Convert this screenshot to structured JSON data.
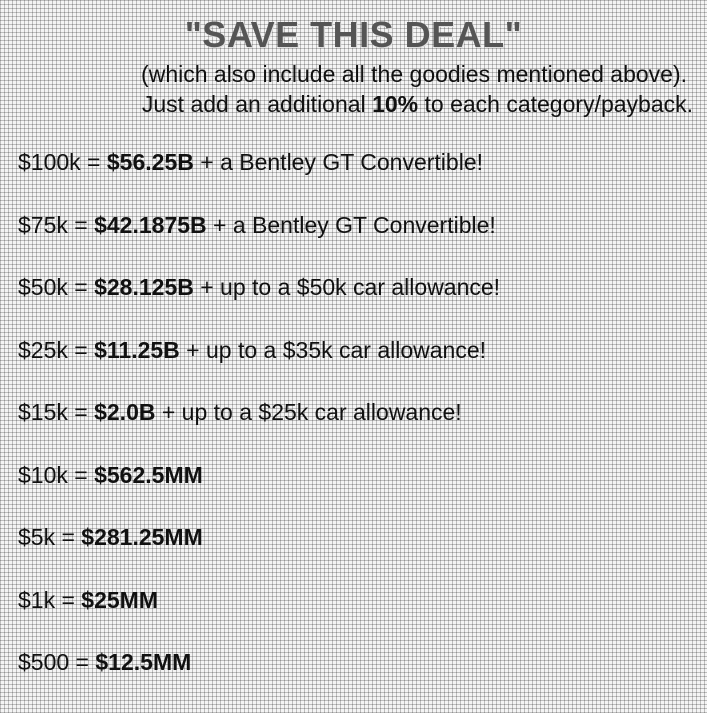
{
  "title": "\"SAVE THIS DEAL\"",
  "subtitle_line1": "(which also include all the goodies mentioned above).",
  "subtitle_line2": {
    "before": "Just add an additional ",
    "emphasis": "10%",
    "after": " to each category/payback."
  },
  "deals": [
    {
      "amount": "$100k = ",
      "payback": "$56.25B",
      "extra": " + a Bentley GT Convertible!"
    },
    {
      "amount": "$75k = ",
      "payback": "$42.1875B",
      "extra": " + a Bentley GT Convertible!"
    },
    {
      "amount": "$50k = ",
      "payback": "$28.125B",
      "extra": " + up to a $50k car allowance!"
    },
    {
      "amount": "$25k = ",
      "payback": "$11.25B",
      "extra": " + up to a $35k car allowance!"
    },
    {
      "amount": "$15k = ",
      "payback": "$2.0B",
      "extra": " + up to a $25k car allowance!"
    },
    {
      "amount": "$10k = ",
      "payback": "$562.5MM",
      "extra": ""
    },
    {
      "amount": "$5k = ",
      "payback": "$281.25MM",
      "extra": ""
    },
    {
      "amount": "$1k = ",
      "payback": "$25MM",
      "extra": ""
    },
    {
      "amount": "$500 = ",
      "payback": "$12.5MM",
      "extra": ""
    }
  ]
}
